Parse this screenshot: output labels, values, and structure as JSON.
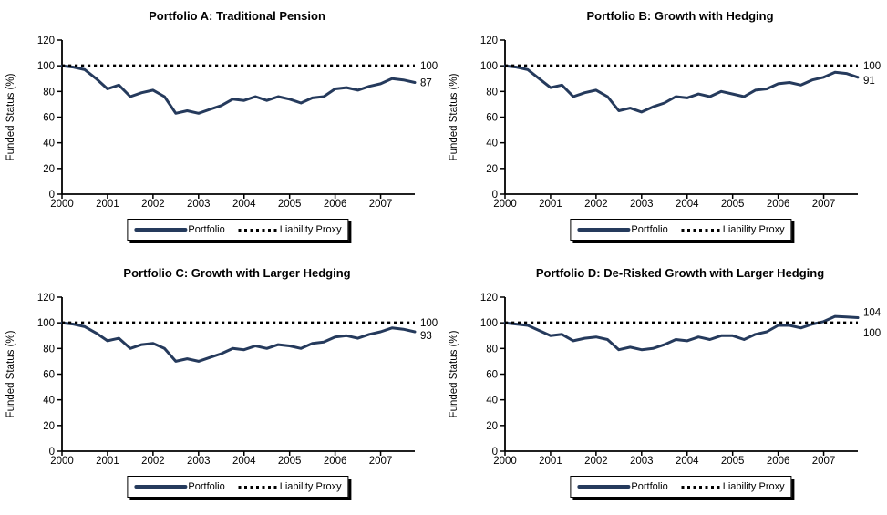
{
  "page": {
    "background": "#ffffff"
  },
  "colors": {
    "portfolio_line": "#253a5c",
    "liability_line": "#000000",
    "axis": "#000000",
    "text": "#000000"
  },
  "legend": {
    "portfolio_label": "Portfolio",
    "liability_label": "Liability Proxy"
  },
  "chart_data": [
    {
      "type": "line",
      "title": "Portfolio A: Traditional Pension",
      "xlabel": "",
      "ylabel": "Funded Status (%)",
      "ylim": [
        0,
        120
      ],
      "yticks": [
        0,
        20,
        40,
        60,
        80,
        100,
        120
      ],
      "xlim": [
        2000,
        2007.75
      ],
      "xticks": [
        2000,
        2001,
        2002,
        2003,
        2004,
        2005,
        2006,
        2007
      ],
      "grid": false,
      "legend_position": "bottom",
      "x": [
        2000,
        2000.25,
        2000.5,
        2000.75,
        2001,
        2001.25,
        2001.5,
        2001.75,
        2002,
        2002.25,
        2002.5,
        2002.75,
        2003,
        2003.25,
        2003.5,
        2003.75,
        2004,
        2004.25,
        2004.5,
        2004.75,
        2005,
        2005.25,
        2005.5,
        2005.75,
        2006,
        2006.25,
        2006.5,
        2006.75,
        2007,
        2007.25,
        2007.5,
        2007.75
      ],
      "series": [
        {
          "name": "Portfolio",
          "style": "solid",
          "color": "#253a5c",
          "values": [
            100,
            99,
            97,
            90,
            82,
            85,
            76,
            79,
            81,
            76,
            63,
            65,
            63,
            66,
            69,
            74,
            73,
            76,
            73,
            76,
            74,
            71,
            75,
            76,
            82,
            83,
            81,
            84,
            86,
            90,
            89,
            87
          ],
          "end_label": "87",
          "end_label_dy": 0
        },
        {
          "name": "Liability Proxy",
          "style": "dotted",
          "color": "#000000",
          "constant": 100,
          "end_label": "100",
          "end_label_dy": 0
        }
      ]
    },
    {
      "type": "line",
      "title": "Portfolio B: Growth with Hedging",
      "xlabel": "",
      "ylabel": "Funded Status (%)",
      "ylim": [
        0,
        120
      ],
      "yticks": [
        0,
        20,
        40,
        60,
        80,
        100,
        120
      ],
      "xlim": [
        2000,
        2007.75
      ],
      "xticks": [
        2000,
        2001,
        2002,
        2003,
        2004,
        2005,
        2006,
        2007
      ],
      "grid": false,
      "legend_position": "bottom",
      "x": [
        2000,
        2000.25,
        2000.5,
        2000.75,
        2001,
        2001.25,
        2001.5,
        2001.75,
        2002,
        2002.25,
        2002.5,
        2002.75,
        2003,
        2003.25,
        2003.5,
        2003.75,
        2004,
        2004.25,
        2004.5,
        2004.75,
        2005,
        2005.25,
        2005.5,
        2005.75,
        2006,
        2006.25,
        2006.5,
        2006.75,
        2007,
        2007.25,
        2007.5,
        2007.75
      ],
      "series": [
        {
          "name": "Portfolio",
          "style": "solid",
          "color": "#253a5c",
          "values": [
            100,
            99,
            97,
            90,
            83,
            85,
            76,
            79,
            81,
            76,
            65,
            67,
            64,
            68,
            71,
            76,
            75,
            78,
            76,
            80,
            78,
            76,
            81,
            82,
            86,
            87,
            85,
            89,
            91,
            95,
            94,
            91
          ],
          "end_label": "91",
          "end_label_dy": 3
        },
        {
          "name": "Liability Proxy",
          "style": "dotted",
          "color": "#000000",
          "constant": 100,
          "end_label": "100",
          "end_label_dy": 0
        }
      ]
    },
    {
      "type": "line",
      "title": "Portfolio C: Growth with Larger Hedging",
      "xlabel": "",
      "ylabel": "Funded Status (%)",
      "ylim": [
        0,
        120
      ],
      "yticks": [
        0,
        20,
        40,
        60,
        80,
        100,
        120
      ],
      "xlim": [
        2000,
        2007.75
      ],
      "xticks": [
        2000,
        2001,
        2002,
        2003,
        2004,
        2005,
        2006,
        2007
      ],
      "grid": false,
      "legend_position": "bottom",
      "x": [
        2000,
        2000.25,
        2000.5,
        2000.75,
        2001,
        2001.25,
        2001.5,
        2001.75,
        2002,
        2002.25,
        2002.5,
        2002.75,
        2003,
        2003.25,
        2003.5,
        2003.75,
        2004,
        2004.25,
        2004.5,
        2004.75,
        2005,
        2005.25,
        2005.5,
        2005.75,
        2006,
        2006.25,
        2006.5,
        2006.75,
        2007,
        2007.25,
        2007.5,
        2007.75
      ],
      "series": [
        {
          "name": "Portfolio",
          "style": "solid",
          "color": "#253a5c",
          "values": [
            100,
            99,
            97,
            92,
            86,
            88,
            80,
            83,
            84,
            80,
            70,
            72,
            70,
            73,
            76,
            80,
            79,
            82,
            80,
            83,
            82,
            80,
            84,
            85,
            89,
            90,
            88,
            91,
            93,
            96,
            95,
            93
          ],
          "end_label": "93",
          "end_label_dy": 4
        },
        {
          "name": "Liability Proxy",
          "style": "dotted",
          "color": "#000000",
          "constant": 100,
          "end_label": "100",
          "end_label_dy": 0
        }
      ]
    },
    {
      "type": "line",
      "title": "Portfolio D: De-Risked Growth with Larger Hedging",
      "xlabel": "",
      "ylabel": "Funded Status (%)",
      "ylim": [
        0,
        120
      ],
      "yticks": [
        0,
        20,
        40,
        60,
        80,
        100,
        120
      ],
      "xlim": [
        2000,
        2007.75
      ],
      "xticks": [
        2000,
        2001,
        2002,
        2003,
        2004,
        2005,
        2006,
        2007
      ],
      "grid": false,
      "legend_position": "bottom",
      "x": [
        2000,
        2000.25,
        2000.5,
        2000.75,
        2001,
        2001.25,
        2001.5,
        2001.75,
        2002,
        2002.25,
        2002.5,
        2002.75,
        2003,
        2003.25,
        2003.5,
        2003.75,
        2004,
        2004.25,
        2004.5,
        2004.75,
        2005,
        2005.25,
        2005.5,
        2005.75,
        2006,
        2006.25,
        2006.5,
        2006.75,
        2007,
        2007.25,
        2007.5,
        2007.75
      ],
      "series": [
        {
          "name": "Portfolio",
          "style": "solid",
          "color": "#253a5c",
          "values": [
            100,
            99,
            98,
            94,
            90,
            91,
            86,
            88,
            89,
            87,
            79,
            81,
            79,
            80,
            83,
            87,
            86,
            89,
            87,
            90,
            90,
            87,
            91,
            93,
            98,
            98,
            96,
            99,
            101,
            105,
            104.5,
            104
          ],
          "end_label": "104",
          "end_label_dy": -6
        },
        {
          "name": "Liability Proxy",
          "style": "dotted",
          "color": "#000000",
          "constant": 100,
          "end_label": "100",
          "end_label_dy": 11
        }
      ]
    }
  ]
}
